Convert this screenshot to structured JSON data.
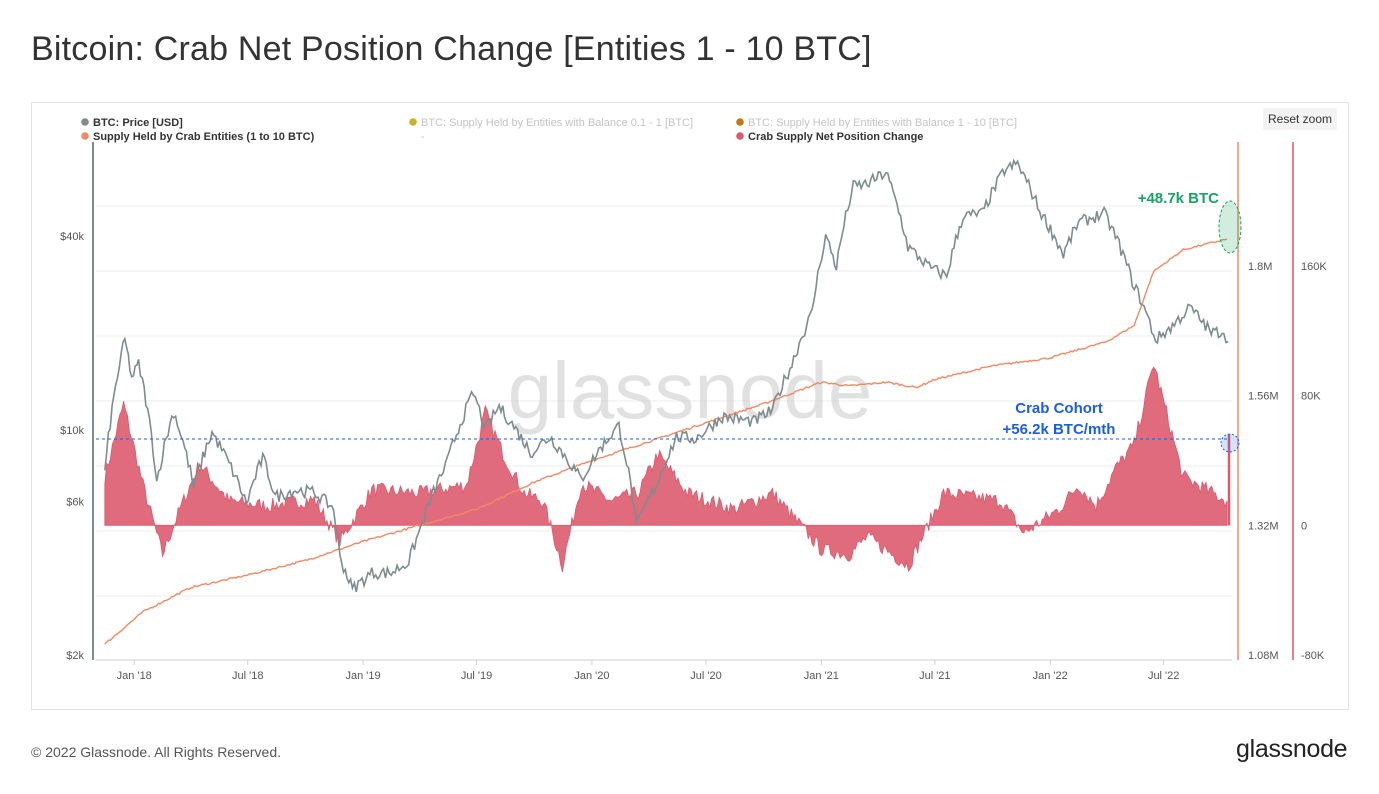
{
  "page": {
    "title": "Bitcoin: Crab Net Position Change [Entities 1 - 10 BTC]",
    "reset_zoom_label": "Reset zoom",
    "copyright": "© 2022 Glassnode. All Rights Reserved.",
    "logo_text": "glassnode",
    "watermark_text": "glassnode"
  },
  "colors": {
    "price": "#7f8c8d",
    "supply_01_1": "#c9b12e",
    "supply_1_10": "#c07a16",
    "crab_supply": "#f08a66",
    "net_change": "#dc5b6e",
    "annotation_green": "#19a463",
    "annotation_blue": "#1a5ee6"
  },
  "chart_data": {
    "type": "line",
    "x_tick_labels": [
      "Jan '18",
      "Jul '18",
      "Jan '19",
      "Jul '19",
      "Jan '20",
      "Jul '20",
      "Jan '21",
      "Jul '21",
      "Jan '22",
      "Jul '22"
    ],
    "x_range": [
      "2017-11",
      "2022-10"
    ],
    "legend": [
      {
        "name": "BTC: Price [USD]",
        "color": "#7f8c8d",
        "active": true
      },
      {
        "name": "Supply Held by Crab Entities (1 to 10 BTC)",
        "color": "#f08a66",
        "active": true
      },
      {
        "name": "BTC: Supply Held by Entities with Balance 0.1 - 1 [BTC]",
        "color": "#c9b12e",
        "active": false
      },
      {
        "name": "-",
        "color": "",
        "active": false
      },
      {
        "name": "BTC: Supply Held by Entities with Balance 1 - 10 [BTC]",
        "color": "#c07a16",
        "active": false
      },
      {
        "name": "Crab Supply Net Position Change",
        "color": "#dc5b6e",
        "active": true
      }
    ],
    "axes": {
      "price": {
        "position": "left",
        "scale": "log",
        "tick_labels": [
          "$40k",
          "$10k",
          "$6k",
          "$2k"
        ],
        "tick_values": [
          40000,
          10000,
          6000,
          2000
        ]
      },
      "supply": {
        "position": "right",
        "tick_labels": [
          "1.8M",
          "1.56M",
          "1.32M",
          "1.08M"
        ],
        "tick_values": [
          1800000,
          1560000,
          1320000,
          1080000
        ]
      },
      "net_change": {
        "position": "right",
        "tick_labels": [
          "160K",
          "80K",
          "0",
          "-80K"
        ],
        "tick_values": [
          160000,
          80000,
          0,
          -80000
        ]
      }
    },
    "series": [
      {
        "name": "BTC: Price [USD]",
        "axis": "price",
        "points": [
          [
            "2017-11-15",
            7300
          ],
          [
            "2017-12-17",
            19000
          ],
          [
            "2017-12-28",
            14500
          ],
          [
            "2018-01-08",
            16000
          ],
          [
            "2018-02-06",
            6900
          ],
          [
            "2018-03-05",
            11400
          ],
          [
            "2018-04-06",
            6600
          ],
          [
            "2018-05-05",
            9800
          ],
          [
            "2018-06-29",
            5900
          ],
          [
            "2018-07-25",
            8200
          ],
          [
            "2018-08-14",
            6200
          ],
          [
            "2018-09-15",
            6500
          ],
          [
            "2018-10-15",
            6400
          ],
          [
            "2018-11-15",
            5700
          ],
          [
            "2018-11-25",
            4000
          ],
          [
            "2018-12-15",
            3200
          ],
          [
            "2019-01-15",
            3600
          ],
          [
            "2019-02-15",
            3600
          ],
          [
            "2019-03-15",
            3900
          ],
          [
            "2019-04-02",
            4900
          ],
          [
            "2019-05-15",
            7900
          ],
          [
            "2019-06-26",
            13000
          ],
          [
            "2019-07-15",
            10000
          ],
          [
            "2019-08-06",
            11800
          ],
          [
            "2019-09-25",
            8500
          ],
          [
            "2019-10-26",
            9500
          ],
          [
            "2019-12-15",
            7000
          ],
          [
            "2020-01-15",
            8800
          ],
          [
            "2020-02-13",
            10300
          ],
          [
            "2020-03-12",
            5000
          ],
          [
            "2020-04-15",
            6900
          ],
          [
            "2020-05-15",
            9500
          ],
          [
            "2020-06-15",
            9400
          ],
          [
            "2020-07-27",
            11000
          ],
          [
            "2020-09-15",
            10600
          ],
          [
            "2020-10-15",
            11500
          ],
          [
            "2020-11-15",
            16000
          ],
          [
            "2020-12-17",
            23000
          ],
          [
            "2021-01-08",
            40000
          ],
          [
            "2021-01-25",
            32000
          ],
          [
            "2021-02-21",
            57000
          ],
          [
            "2021-03-15",
            58000
          ],
          [
            "2021-04-14",
            63000
          ],
          [
            "2021-05-19",
            37000
          ],
          [
            "2021-06-22",
            32000
          ],
          [
            "2021-07-20",
            30000
          ],
          [
            "2021-08-15",
            46000
          ],
          [
            "2021-09-15",
            47000
          ],
          [
            "2021-10-20",
            64000
          ],
          [
            "2021-11-10",
            67000
          ],
          [
            "2021-12-15",
            48000
          ],
          [
            "2022-01-22",
            35000
          ],
          [
            "2022-02-15",
            44000
          ],
          [
            "2022-03-28",
            47000
          ],
          [
            "2022-04-15",
            40000
          ],
          [
            "2022-05-12",
            29000
          ],
          [
            "2022-06-18",
            19000
          ],
          [
            "2022-07-15",
            21000
          ],
          [
            "2022-08-12",
            24000
          ],
          [
            "2022-09-15",
            20000
          ],
          [
            "2022-10-05",
            20300
          ],
          [
            "2022-10-12",
            18800
          ]
        ]
      },
      {
        "name": "Supply Held by Crab Entities (1 to 10 BTC)",
        "axis": "supply",
        "points": [
          [
            "2017-11-15",
            1100000
          ],
          [
            "2018-01-15",
            1160000
          ],
          [
            "2018-04-01",
            1205000
          ],
          [
            "2018-07-01",
            1228000
          ],
          [
            "2018-10-01",
            1255000
          ],
          [
            "2019-01-01",
            1290000
          ],
          [
            "2019-04-01",
            1320000
          ],
          [
            "2019-07-01",
            1350000
          ],
          [
            "2019-10-01",
            1400000
          ],
          [
            "2020-01-01",
            1440000
          ],
          [
            "2020-04-01",
            1475000
          ],
          [
            "2020-07-01",
            1510000
          ],
          [
            "2020-10-01",
            1545000
          ],
          [
            "2021-01-01",
            1585000
          ],
          [
            "2021-02-15",
            1578000
          ],
          [
            "2021-04-15",
            1585000
          ],
          [
            "2021-06-01",
            1575000
          ],
          [
            "2021-07-01",
            1590000
          ],
          [
            "2021-10-01",
            1615000
          ],
          [
            "2022-01-01",
            1630000
          ],
          [
            "2022-04-01",
            1660000
          ],
          [
            "2022-05-15",
            1690000
          ],
          [
            "2022-06-15",
            1790000
          ],
          [
            "2022-08-01",
            1830000
          ],
          [
            "2022-10-10",
            1850000
          ]
        ]
      },
      {
        "name": "Crab Supply Net Position Change",
        "axis": "net_change",
        "points": [
          [
            "2017-11-15",
            30000
          ],
          [
            "2017-12-15",
            75000
          ],
          [
            "2018-01-15",
            25000
          ],
          [
            "2018-02-15",
            -18000
          ],
          [
            "2018-03-15",
            10000
          ],
          [
            "2018-04-15",
            38000
          ],
          [
            "2018-06-01",
            15000
          ],
          [
            "2018-08-01",
            12000
          ],
          [
            "2018-10-15",
            16000
          ],
          [
            "2018-11-25",
            -10000
          ],
          [
            "2019-01-15",
            22000
          ],
          [
            "2019-04-01",
            20000
          ],
          [
            "2019-06-15",
            25000
          ],
          [
            "2019-07-15",
            70000
          ],
          [
            "2019-08-15",
            42000
          ],
          [
            "2019-09-15",
            20000
          ],
          [
            "2019-10-15",
            15000
          ],
          [
            "2019-11-15",
            -25000
          ],
          [
            "2019-12-15",
            26000
          ],
          [
            "2020-02-01",
            15000
          ],
          [
            "2020-03-15",
            20000
          ],
          [
            "2020-04-15",
            44000
          ],
          [
            "2020-06-01",
            20000
          ],
          [
            "2020-08-15",
            10000
          ],
          [
            "2020-10-15",
            20000
          ],
          [
            "2021-01-01",
            -15000
          ],
          [
            "2021-02-15",
            -18000
          ],
          [
            "2021-03-15",
            -7000
          ],
          [
            "2021-05-20",
            -25000
          ],
          [
            "2021-07-15",
            20000
          ],
          [
            "2021-10-15",
            15000
          ],
          [
            "2021-11-20",
            -5000
          ],
          [
            "2022-01-15",
            10000
          ],
          [
            "2022-02-15",
            25000
          ],
          [
            "2022-03-15",
            12000
          ],
          [
            "2022-04-15",
            35000
          ],
          [
            "2022-05-15",
            50000
          ],
          [
            "2022-06-15",
            100000
          ],
          [
            "2022-08-01",
            30000
          ],
          [
            "2022-10-10",
            15000
          ]
        ]
      }
    ],
    "annotations": [
      {
        "text": "+48.7k BTC",
        "color": "#19a463",
        "target": "Supply Held by Crab Entities (1 to 10 BTC)",
        "date": "2022-10-10"
      },
      {
        "text": "Crab Cohort",
        "color": "#1a5ee6",
        "target": "Crab Supply Net Position Change",
        "date": "2022-10-10"
      },
      {
        "text": "+56.2k BTC/mth",
        "color": "#1a5ee6",
        "target": "Crab Supply Net Position Change",
        "date": "2022-10-10"
      }
    ]
  }
}
